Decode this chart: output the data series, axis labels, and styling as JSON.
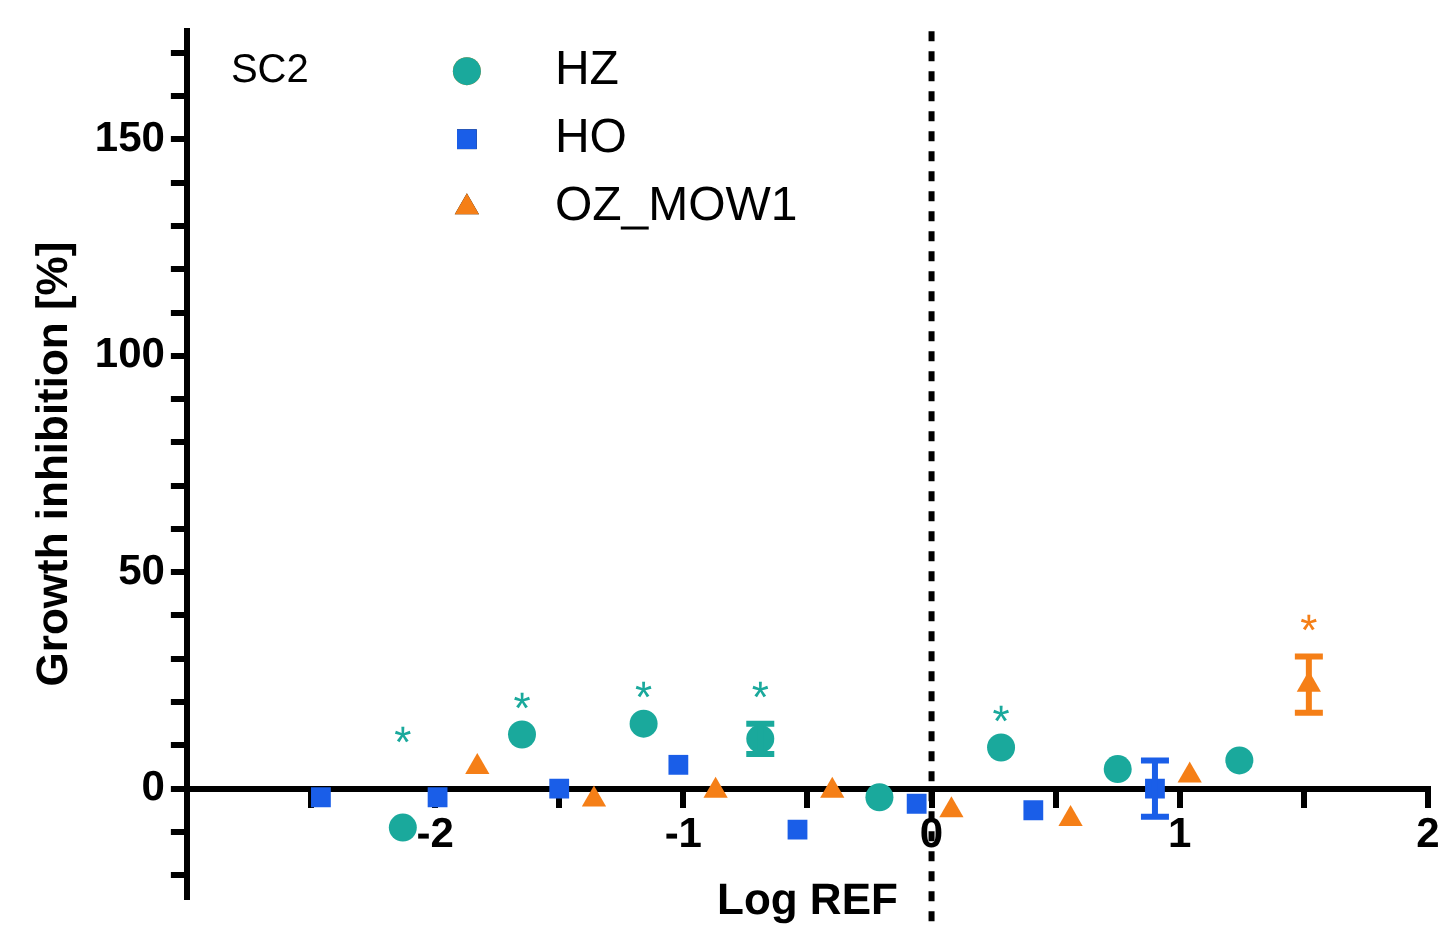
{
  "chart_data": {
    "type": "scatter",
    "xlabel": "Log REF",
    "ylabel": "Growth inhibition [%]",
    "annotations": [
      "SC2",
      {
        "text": "*",
        "x": -2.13,
        "y": -9
      },
      {
        "text": "*",
        "x": -1.65,
        "y": 12.5
      },
      {
        "text": "*",
        "x": -1.16,
        "y": 15
      },
      {
        "text": "*",
        "x": -0.69,
        "y": 11.5
      },
      {
        "text": "*",
        "x": 0.28,
        "y": 9.5
      },
      {
        "text": "*",
        "x": 1.52,
        "y": 24
      }
    ],
    "series": [
      {
        "name": "HZ",
        "color": "#1aa99c",
        "marker": "circle",
        "x": [
          -2.13,
          -1.65,
          -1.16,
          -0.69,
          -0.21,
          0.28,
          0.75,
          1.24
        ],
        "values": [
          -9,
          12.5,
          15,
          11.5,
          -2,
          9.5,
          4.5,
          6.5
        ],
        "errors": [
          null,
          null,
          null,
          3.5,
          null,
          null,
          null,
          null
        ]
      },
      {
        "name": "HO",
        "color": "#1a5ee8",
        "marker": "square",
        "x": [
          -2.46,
          -1.99,
          -1.5,
          -1.02,
          -0.54,
          -0.06,
          0.41,
          0.9
        ],
        "values": [
          -2,
          -2,
          0,
          5.5,
          -9.5,
          -3.5,
          -5,
          0
        ],
        "errors": [
          null,
          null,
          null,
          null,
          null,
          null,
          null,
          6.5
        ]
      },
      {
        "name": "OZ_MOW1",
        "color": "#f57f17",
        "marker": "triangle",
        "x": [
          -1.83,
          -1.36,
          -0.87,
          -0.4,
          0.08,
          0.56,
          1.04,
          1.52
        ],
        "values": [
          5,
          -2.5,
          -0.5,
          -0.5,
          -5,
          -7,
          3,
          24
        ],
        "errors": [
          null,
          null,
          null,
          null,
          null,
          null,
          null,
          6.5
        ]
      }
    ],
    "xlim": [
      -3,
      2
    ],
    "xticks": [
      {
        "value": -2.5,
        "label": null
      },
      -2,
      {
        "value": -1.5,
        "label": null
      },
      -1,
      {
        "value": -0.5,
        "label": null
      },
      0,
      {
        "value": 0.5,
        "label": null
      },
      1,
      {
        "value": 1.5,
        "label": null
      },
      2
    ],
    "ylim": [
      -25,
      175
    ],
    "yticks": [
      {
        "value": -20,
        "label": null
      },
      {
        "value": -10,
        "label": null
      },
      0,
      {
        "value": 10,
        "label": null
      },
      {
        "value": 20,
        "label": null
      },
      {
        "value": 30,
        "label": null
      },
      {
        "value": 40,
        "label": null
      },
      50,
      {
        "value": 60,
        "label": null
      },
      {
        "value": 70,
        "label": null
      },
      {
        "value": 80,
        "label": null
      },
      {
        "value": 90,
        "label": null
      },
      100,
      {
        "value": 110,
        "label": null
      },
      {
        "value": 120,
        "label": null
      },
      {
        "value": 130,
        "label": null
      },
      {
        "value": 140,
        "label": null
      },
      150,
      {
        "value": 160,
        "label": null
      },
      {
        "value": 170,
        "label": null
      }
    ],
    "ref_lines": [
      {
        "axis": "x",
        "value": 0,
        "line_style": "dashed",
        "color": "#000000"
      }
    ],
    "grid": false,
    "legend": "top left"
  }
}
